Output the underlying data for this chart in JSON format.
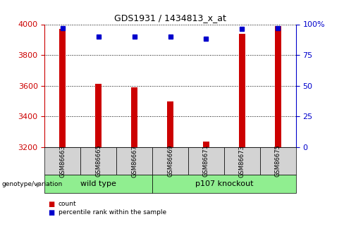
{
  "title": "GDS1931 / 1434813_x_at",
  "samples": [
    "GSM86663",
    "GSM86665",
    "GSM86667",
    "GSM86669",
    "GSM86671",
    "GSM86673",
    "GSM86675"
  ],
  "count_values": [
    3970,
    3610,
    3590,
    3495,
    3235,
    3940,
    3990
  ],
  "percentile_values": [
    97,
    90,
    90,
    90,
    88,
    96,
    97
  ],
  "y_min": 3200,
  "y_max": 4000,
  "y_ticks": [
    3200,
    3400,
    3600,
    3800,
    4000
  ],
  "right_y_ticks": [
    0,
    25,
    50,
    75,
    100
  ],
  "right_y_tick_labels": [
    "0",
    "25",
    "50",
    "75",
    "100%"
  ],
  "groups": [
    {
      "label": "wild type",
      "start": 0,
      "end": 3
    },
    {
      "label": "p107 knockout",
      "start": 3,
      "end": 7
    }
  ],
  "group_label": "genotype/variation",
  "bar_color": "#CC0000",
  "dot_color": "#0000CC",
  "bar_width": 0.18,
  "legend_items": [
    {
      "label": "count",
      "color": "#CC0000"
    },
    {
      "label": "percentile rank within the sample",
      "color": "#0000CC"
    }
  ],
  "tick_label_color": "#CC0000",
  "right_tick_color": "#0000CC",
  "grid_color": "black",
  "background_color": "#FFFFFF",
  "label_box_color": "#D3D3D3",
  "group_box_color": "#90EE90"
}
